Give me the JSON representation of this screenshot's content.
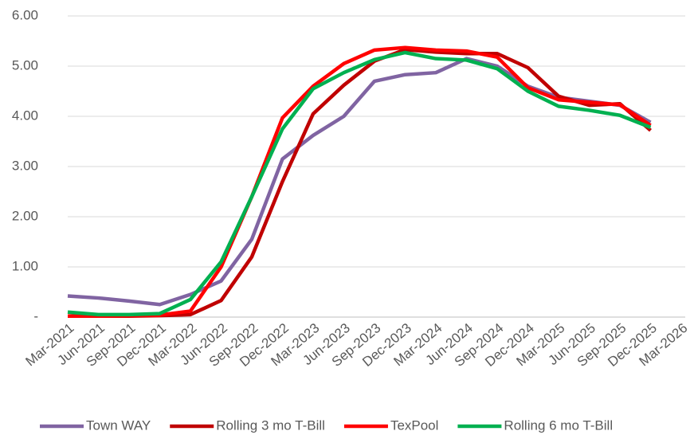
{
  "chart_data": {
    "type": "line",
    "categories": [
      "Mar-2021",
      "Jun-2021",
      "Sep-2021",
      "Dec-2021",
      "Mar-2022",
      "Jun-2022",
      "Sep-2022",
      "Dec-2022",
      "Mar-2023",
      "Jun-2023",
      "Sep-2023",
      "Dec-2023",
      "Mar-2024",
      "Jun-2024",
      "Sep-2024",
      "Dec-2024",
      "Mar-2025",
      "Jun-2025",
      "Sep-2025",
      "Dec-2025",
      "Mar-2026"
    ],
    "series": [
      {
        "name": "Town WAY",
        "color": "#8064a2",
        "values": [
          0.42,
          0.38,
          0.32,
          0.25,
          0.45,
          0.72,
          1.55,
          3.15,
          3.62,
          4.0,
          4.7,
          4.83,
          4.87,
          5.15,
          5.0,
          4.6,
          4.38,
          4.3,
          4.22,
          3.88,
          null
        ]
      },
      {
        "name": "Rolling 3 mo T-Bill",
        "color": "#c00000",
        "values": [
          0.02,
          0.02,
          0.02,
          0.03,
          0.05,
          0.33,
          1.2,
          2.7,
          4.05,
          4.62,
          5.1,
          5.33,
          5.28,
          5.25,
          5.25,
          4.97,
          4.4,
          4.22,
          4.25,
          3.72,
          null
        ]
      },
      {
        "name": "TexPool",
        "color": "#ff0000",
        "values": [
          0.02,
          0.02,
          0.03,
          0.04,
          0.12,
          1.0,
          2.4,
          3.97,
          4.6,
          5.05,
          5.32,
          5.37,
          5.32,
          5.3,
          5.18,
          4.57,
          4.33,
          4.28,
          4.23,
          3.82,
          null
        ]
      },
      {
        "name": "Rolling 6 mo T-Bill",
        "color": "#00b050",
        "values": [
          0.1,
          0.05,
          0.05,
          0.07,
          0.35,
          1.1,
          2.4,
          3.75,
          4.55,
          4.87,
          5.13,
          5.27,
          5.15,
          5.12,
          4.95,
          4.5,
          4.2,
          4.12,
          4.02,
          3.78,
          null
        ]
      }
    ],
    "ylim": [
      0,
      6
    ],
    "yticks": [
      {
        "value": 0,
        "label": "-"
      },
      {
        "value": 1,
        "label": "1.00"
      },
      {
        "value": 2,
        "label": "2.00"
      },
      {
        "value": 3,
        "label": "3.00"
      },
      {
        "value": 4,
        "label": "4.00"
      },
      {
        "value": 5,
        "label": "5.00"
      },
      {
        "value": 6,
        "label": "6.00"
      }
    ],
    "grid": true,
    "legend": "bottom"
  }
}
